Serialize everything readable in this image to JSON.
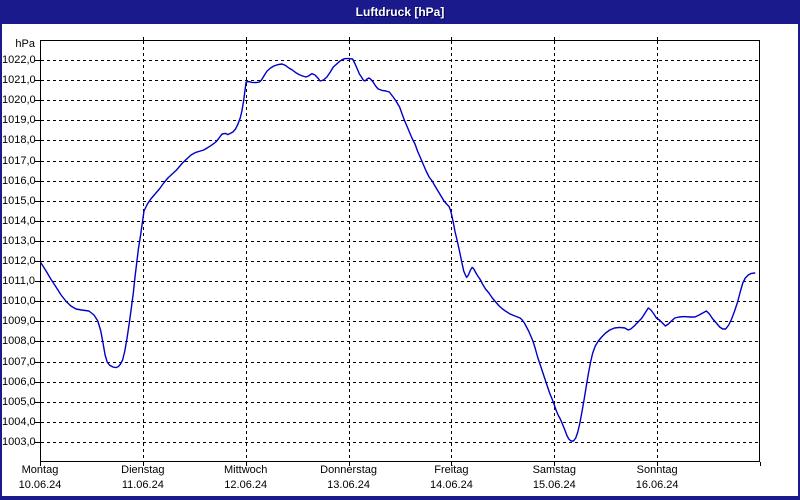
{
  "window": {
    "title": "Luftdruck [hPa]"
  },
  "colors": {
    "titlebar_bg": "#1a1a8c",
    "frame": "#1a1a8c",
    "title_text": "#ffffff",
    "plot_bg": "#ffffff",
    "grid": "#000000",
    "axis_text": "#000000",
    "line": "#0000c8"
  },
  "y_axis": {
    "unit": "hPa",
    "tick_labels": [
      "1022,0",
      "1021,0",
      "1020,0",
      "1019,0",
      "1018,0",
      "1017,0",
      "1016,0",
      "1015,0",
      "1014,0",
      "1013,0",
      "1012,0",
      "1011,0",
      "1010,0",
      "1009,0",
      "1008,0",
      "1007,0",
      "1006,0",
      "1005,0",
      "1004,0",
      "1003,0"
    ],
    "tick_values": [
      1022,
      1021,
      1020,
      1019,
      1018,
      1017,
      1016,
      1015,
      1014,
      1013,
      1012,
      1011,
      1010,
      1009,
      1008,
      1007,
      1006,
      1005,
      1004,
      1003
    ]
  },
  "x_axis": {
    "days": [
      {
        "name": "Montag",
        "date": "10.06.24",
        "hour": 0
      },
      {
        "name": "Dienstag",
        "date": "11.06.24",
        "hour": 24
      },
      {
        "name": "Mittwoch",
        "date": "12.06.24",
        "hour": 48
      },
      {
        "name": "Donnerstag",
        "date": "13.06.24",
        "hour": 72
      },
      {
        "name": "Freitag",
        "date": "14.06.24",
        "hour": 96
      },
      {
        "name": "Samstag",
        "date": "15.06.24",
        "hour": 120
      },
      {
        "name": "Sonntag",
        "date": "16.06.24",
        "hour": 144
      }
    ],
    "boundary_hours": [
      24,
      48,
      72,
      96,
      120,
      144
    ],
    "hours_total": 168
  },
  "chart_data": {
    "type": "line",
    "title": "Luftdruck [hPa]",
    "ylabel": "hPa",
    "ylim": [
      1002,
      1023
    ],
    "xlim_hours": [
      0,
      168
    ],
    "x_unit": "hours since Montag 10.06.24 00:00",
    "grid": true,
    "legend": "none",
    "series": [
      {
        "name": "Luftdruck",
        "color": "#0000c8",
        "points": [
          [
            0,
            1011.9
          ],
          [
            1.2,
            1011.5
          ],
          [
            2.3,
            1011.1
          ],
          [
            3.5,
            1010.7
          ],
          [
            4.7,
            1010.3
          ],
          [
            5.8,
            1010.0
          ],
          [
            7,
            1009.75
          ],
          [
            8.2,
            1009.6
          ],
          [
            9.5,
            1009.55
          ],
          [
            11.2,
            1009.5
          ],
          [
            12.4,
            1009.3
          ],
          [
            13.3,
            1009.0
          ],
          [
            14,
            1008.5
          ],
          [
            14.5,
            1007.9
          ],
          [
            15,
            1007.3
          ],
          [
            15.5,
            1006.95
          ],
          [
            16,
            1006.8
          ],
          [
            16.8,
            1006.7
          ],
          [
            17.5,
            1006.67
          ],
          [
            18.1,
            1006.72
          ],
          [
            18.6,
            1006.85
          ],
          [
            19.1,
            1007.05
          ],
          [
            19.6,
            1007.5
          ],
          [
            20.1,
            1008.1
          ],
          [
            20.6,
            1008.8
          ],
          [
            21.1,
            1009.6
          ],
          [
            21.6,
            1010.4
          ],
          [
            22,
            1011.2
          ],
          [
            22.4,
            1011.9
          ],
          [
            22.8,
            1012.6
          ],
          [
            23.3,
            1013.3
          ],
          [
            23.7,
            1013.9
          ],
          [
            24.1,
            1014.5
          ],
          [
            24.9,
            1014.85
          ],
          [
            25.7,
            1015.1
          ],
          [
            26.7,
            1015.35
          ],
          [
            27.7,
            1015.6
          ],
          [
            28.7,
            1015.9
          ],
          [
            29.7,
            1016.15
          ],
          [
            30.7,
            1016.35
          ],
          [
            31.7,
            1016.55
          ],
          [
            33.1,
            1016.9
          ],
          [
            34.1,
            1017.1
          ],
          [
            35.1,
            1017.3
          ],
          [
            36.1,
            1017.42
          ],
          [
            37.3,
            1017.5
          ],
          [
            38.1,
            1017.55
          ],
          [
            39.1,
            1017.68
          ],
          [
            40.1,
            1017.82
          ],
          [
            40.9,
            1017.95
          ],
          [
            41.5,
            1018.1
          ],
          [
            42,
            1018.25
          ],
          [
            42.4,
            1018.35
          ],
          [
            43.2,
            1018.38
          ],
          [
            43.7,
            1018.32
          ],
          [
            44.3,
            1018.38
          ],
          [
            44.9,
            1018.45
          ],
          [
            45.5,
            1018.6
          ],
          [
            46.1,
            1018.85
          ],
          [
            46.6,
            1019.15
          ],
          [
            47,
            1019.5
          ],
          [
            47.4,
            1020.0
          ],
          [
            47.7,
            1020.5
          ],
          [
            48,
            1020.95
          ],
          [
            48.6,
            1020.97
          ],
          [
            49.4,
            1020.93
          ],
          [
            50.4,
            1020.92
          ],
          [
            51.1,
            1020.95
          ],
          [
            51.6,
            1021.05
          ],
          [
            52.3,
            1021.3
          ],
          [
            52.9,
            1021.5
          ],
          [
            53.7,
            1021.65
          ],
          [
            54.5,
            1021.75
          ],
          [
            55.5,
            1021.82
          ],
          [
            56.4,
            1021.85
          ],
          [
            57.2,
            1021.78
          ],
          [
            58,
            1021.65
          ],
          [
            58.8,
            1021.55
          ],
          [
            59.6,
            1021.42
          ],
          [
            60.4,
            1021.32
          ],
          [
            61.2,
            1021.25
          ],
          [
            62,
            1021.2
          ],
          [
            62.6,
            1021.25
          ],
          [
            63.4,
            1021.37
          ],
          [
            64.1,
            1021.3
          ],
          [
            64.9,
            1021.12
          ],
          [
            65.3,
            1021.0
          ],
          [
            66.1,
            1021.05
          ],
          [
            66.9,
            1021.2
          ],
          [
            67.7,
            1021.45
          ],
          [
            68.4,
            1021.7
          ],
          [
            69.2,
            1021.85
          ],
          [
            69.8,
            1021.97
          ],
          [
            70.5,
            1022.07
          ],
          [
            71.2,
            1022.12
          ],
          [
            72,
            1022.12
          ],
          [
            72.9,
            1022.1
          ],
          [
            73.5,
            1021.85
          ],
          [
            74,
            1021.6
          ],
          [
            74.5,
            1021.35
          ],
          [
            75,
            1021.2
          ],
          [
            75.4,
            1021.05
          ],
          [
            75.8,
            1021.0
          ],
          [
            76.3,
            1021.1
          ],
          [
            76.7,
            1021.15
          ],
          [
            77.1,
            1021.1
          ],
          [
            77.7,
            1020.95
          ],
          [
            78.3,
            1020.75
          ],
          [
            78.9,
            1020.6
          ],
          [
            79.8,
            1020.53
          ],
          [
            80.7,
            1020.5
          ],
          [
            81.5,
            1020.45
          ],
          [
            82.4,
            1020.2
          ],
          [
            83.2,
            1019.95
          ],
          [
            83.9,
            1019.7
          ],
          [
            84.5,
            1019.35
          ],
          [
            85.1,
            1019.0
          ],
          [
            85.7,
            1018.7
          ],
          [
            86.3,
            1018.4
          ],
          [
            86.9,
            1018.1
          ],
          [
            87.5,
            1017.85
          ],
          [
            88.1,
            1017.5
          ],
          [
            88.7,
            1017.2
          ],
          [
            89.4,
            1016.85
          ],
          [
            90.1,
            1016.5
          ],
          [
            90.8,
            1016.2
          ],
          [
            91.5,
            1016.0
          ],
          [
            92.2,
            1015.75
          ],
          [
            92.9,
            1015.5
          ],
          [
            93.6,
            1015.25
          ],
          [
            94.3,
            1015.0
          ],
          [
            94.9,
            1014.85
          ],
          [
            95.5,
            1014.72
          ],
          [
            95.8,
            1014.55
          ],
          [
            96.1,
            1014.3
          ],
          [
            96.5,
            1013.9
          ],
          [
            96.9,
            1013.45
          ],
          [
            97.3,
            1013.1
          ],
          [
            97.7,
            1012.7
          ],
          [
            98.1,
            1012.3
          ],
          [
            98.5,
            1011.9
          ],
          [
            98.9,
            1011.5
          ],
          [
            99.3,
            1011.3
          ],
          [
            99.6,
            1011.18
          ],
          [
            100,
            1011.3
          ],
          [
            100.5,
            1011.55
          ],
          [
            100.9,
            1011.68
          ],
          [
            101.3,
            1011.6
          ],
          [
            101.7,
            1011.43
          ],
          [
            102.2,
            1011.25
          ],
          [
            102.7,
            1011.1
          ],
          [
            103.3,
            1010.85
          ],
          [
            104,
            1010.6
          ],
          [
            104.8,
            1010.4
          ],
          [
            105.6,
            1010.15
          ],
          [
            106.4,
            1009.95
          ],
          [
            107.2,
            1009.75
          ],
          [
            108,
            1009.6
          ],
          [
            108.8,
            1009.48
          ],
          [
            109.6,
            1009.37
          ],
          [
            110.5,
            1009.28
          ],
          [
            111.3,
            1009.22
          ],
          [
            112.1,
            1009.15
          ],
          [
            112.6,
            1009.05
          ],
          [
            113.1,
            1008.9
          ],
          [
            113.6,
            1008.7
          ],
          [
            114.1,
            1008.5
          ],
          [
            114.6,
            1008.25
          ],
          [
            115.1,
            1008.0
          ],
          [
            115.6,
            1007.65
          ],
          [
            116.2,
            1007.2
          ],
          [
            116.9,
            1006.75
          ],
          [
            117.6,
            1006.3
          ],
          [
            118.3,
            1005.85
          ],
          [
            119,
            1005.4
          ],
          [
            119.6,
            1005.1
          ],
          [
            120.1,
            1004.8
          ],
          [
            120.6,
            1004.5
          ],
          [
            121.1,
            1004.25
          ],
          [
            121.5,
            1004.1
          ],
          [
            122,
            1003.85
          ],
          [
            122.5,
            1003.6
          ],
          [
            123,
            1003.3
          ],
          [
            123.5,
            1003.1
          ],
          [
            124,
            1003.0
          ],
          [
            124.6,
            1003.0
          ],
          [
            125.1,
            1003.15
          ],
          [
            125.6,
            1003.45
          ],
          [
            126.1,
            1003.9
          ],
          [
            126.6,
            1004.5
          ],
          [
            127.1,
            1005.1
          ],
          [
            127.6,
            1005.75
          ],
          [
            128.1,
            1006.4
          ],
          [
            128.6,
            1006.95
          ],
          [
            129.1,
            1007.4
          ],
          [
            129.7,
            1007.75
          ],
          [
            130.4,
            1008.0
          ],
          [
            131.2,
            1008.2
          ],
          [
            132.1,
            1008.4
          ],
          [
            133.1,
            1008.55
          ],
          [
            134.2,
            1008.65
          ],
          [
            135.4,
            1008.68
          ],
          [
            136.6,
            1008.65
          ],
          [
            137.4,
            1008.55
          ],
          [
            138,
            1008.6
          ],
          [
            138.8,
            1008.75
          ],
          [
            139.7,
            1008.95
          ],
          [
            140.6,
            1009.15
          ],
          [
            141.5,
            1009.45
          ],
          [
            142.1,
            1009.65
          ],
          [
            142.7,
            1009.55
          ],
          [
            143.4,
            1009.35
          ],
          [
            144,
            1009.15
          ],
          [
            144.7,
            1009.05
          ],
          [
            145.4,
            1008.9
          ],
          [
            146.1,
            1008.75
          ],
          [
            146.8,
            1008.85
          ],
          [
            147.5,
            1009.0
          ],
          [
            148.3,
            1009.15
          ],
          [
            149.3,
            1009.2
          ],
          [
            150.5,
            1009.22
          ],
          [
            151.8,
            1009.2
          ],
          [
            153,
            1009.2
          ],
          [
            154,
            1009.3
          ],
          [
            155,
            1009.42
          ],
          [
            155.7,
            1009.5
          ],
          [
            156.4,
            1009.35
          ],
          [
            157.2,
            1009.1
          ],
          [
            158,
            1008.9
          ],
          [
            158.8,
            1008.7
          ],
          [
            159.5,
            1008.6
          ],
          [
            160.2,
            1008.6
          ],
          [
            160.9,
            1008.8
          ],
          [
            161.6,
            1009.1
          ],
          [
            162.3,
            1009.5
          ],
          [
            163,
            1009.95
          ],
          [
            163.6,
            1010.45
          ],
          [
            164.2,
            1010.9
          ],
          [
            164.8,
            1011.15
          ],
          [
            165.5,
            1011.3
          ],
          [
            166.2,
            1011.38
          ],
          [
            167,
            1011.4
          ]
        ]
      }
    ]
  }
}
